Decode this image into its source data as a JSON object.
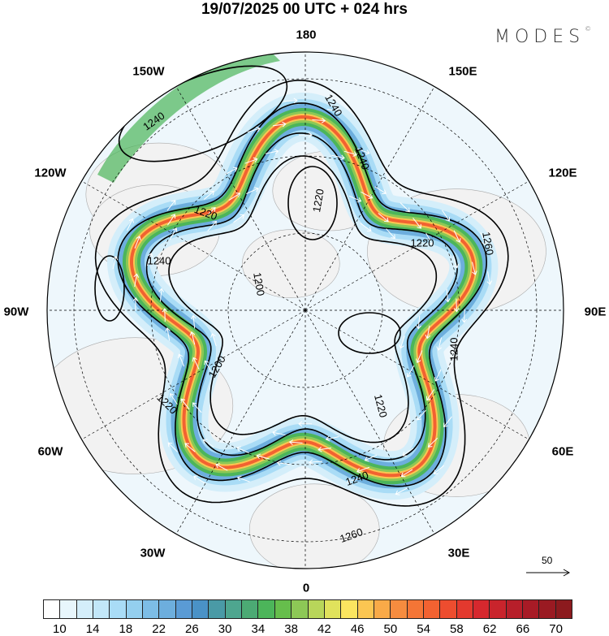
{
  "title": "19/07/2025  00 UTC  + 024 hrs",
  "logo": {
    "text": "MODES",
    "mark": "©"
  },
  "longitude_labels": [
    "180",
    "150E",
    "120E",
    "90E",
    "60E",
    "30E",
    "0",
    "30W",
    "60W",
    "90W",
    "120W",
    "150W"
  ],
  "contour_labels": [
    "1240",
    "1240",
    "1240",
    "1220",
    "1220",
    "1260",
    "1200",
    "1240",
    "1240",
    "1200",
    "1220",
    "1220",
    "1240",
    "1260",
    "1220"
  ],
  "vector_reference": "50",
  "colorbar": {
    "labels": [
      "10",
      "14",
      "18",
      "22",
      "26",
      "30",
      "34",
      "38",
      "42",
      "46",
      "50",
      "54",
      "58",
      "62",
      "66",
      "70"
    ],
    "colors": [
      "#ffffff",
      "#e8f6fc",
      "#d4eefa",
      "#c2e7f8",
      "#a9dcf6",
      "#94cfef",
      "#7dbde6",
      "#6daedd",
      "#5a9bd5",
      "#4a92c7",
      "#4a9aa6",
      "#4ea68f",
      "#4caa74",
      "#4cb55a",
      "#66be4c",
      "#8dc856",
      "#b8d65a",
      "#e0e25c",
      "#fbe560",
      "#fbc652",
      "#f9aa48",
      "#f68c3f",
      "#f47536",
      "#f26231",
      "#ed4d2f",
      "#e3392e",
      "#d6282e",
      "#c9242c",
      "#b71f2a",
      "#a81b26",
      "#9a1a22",
      "#8c1a1e"
    ]
  }
}
